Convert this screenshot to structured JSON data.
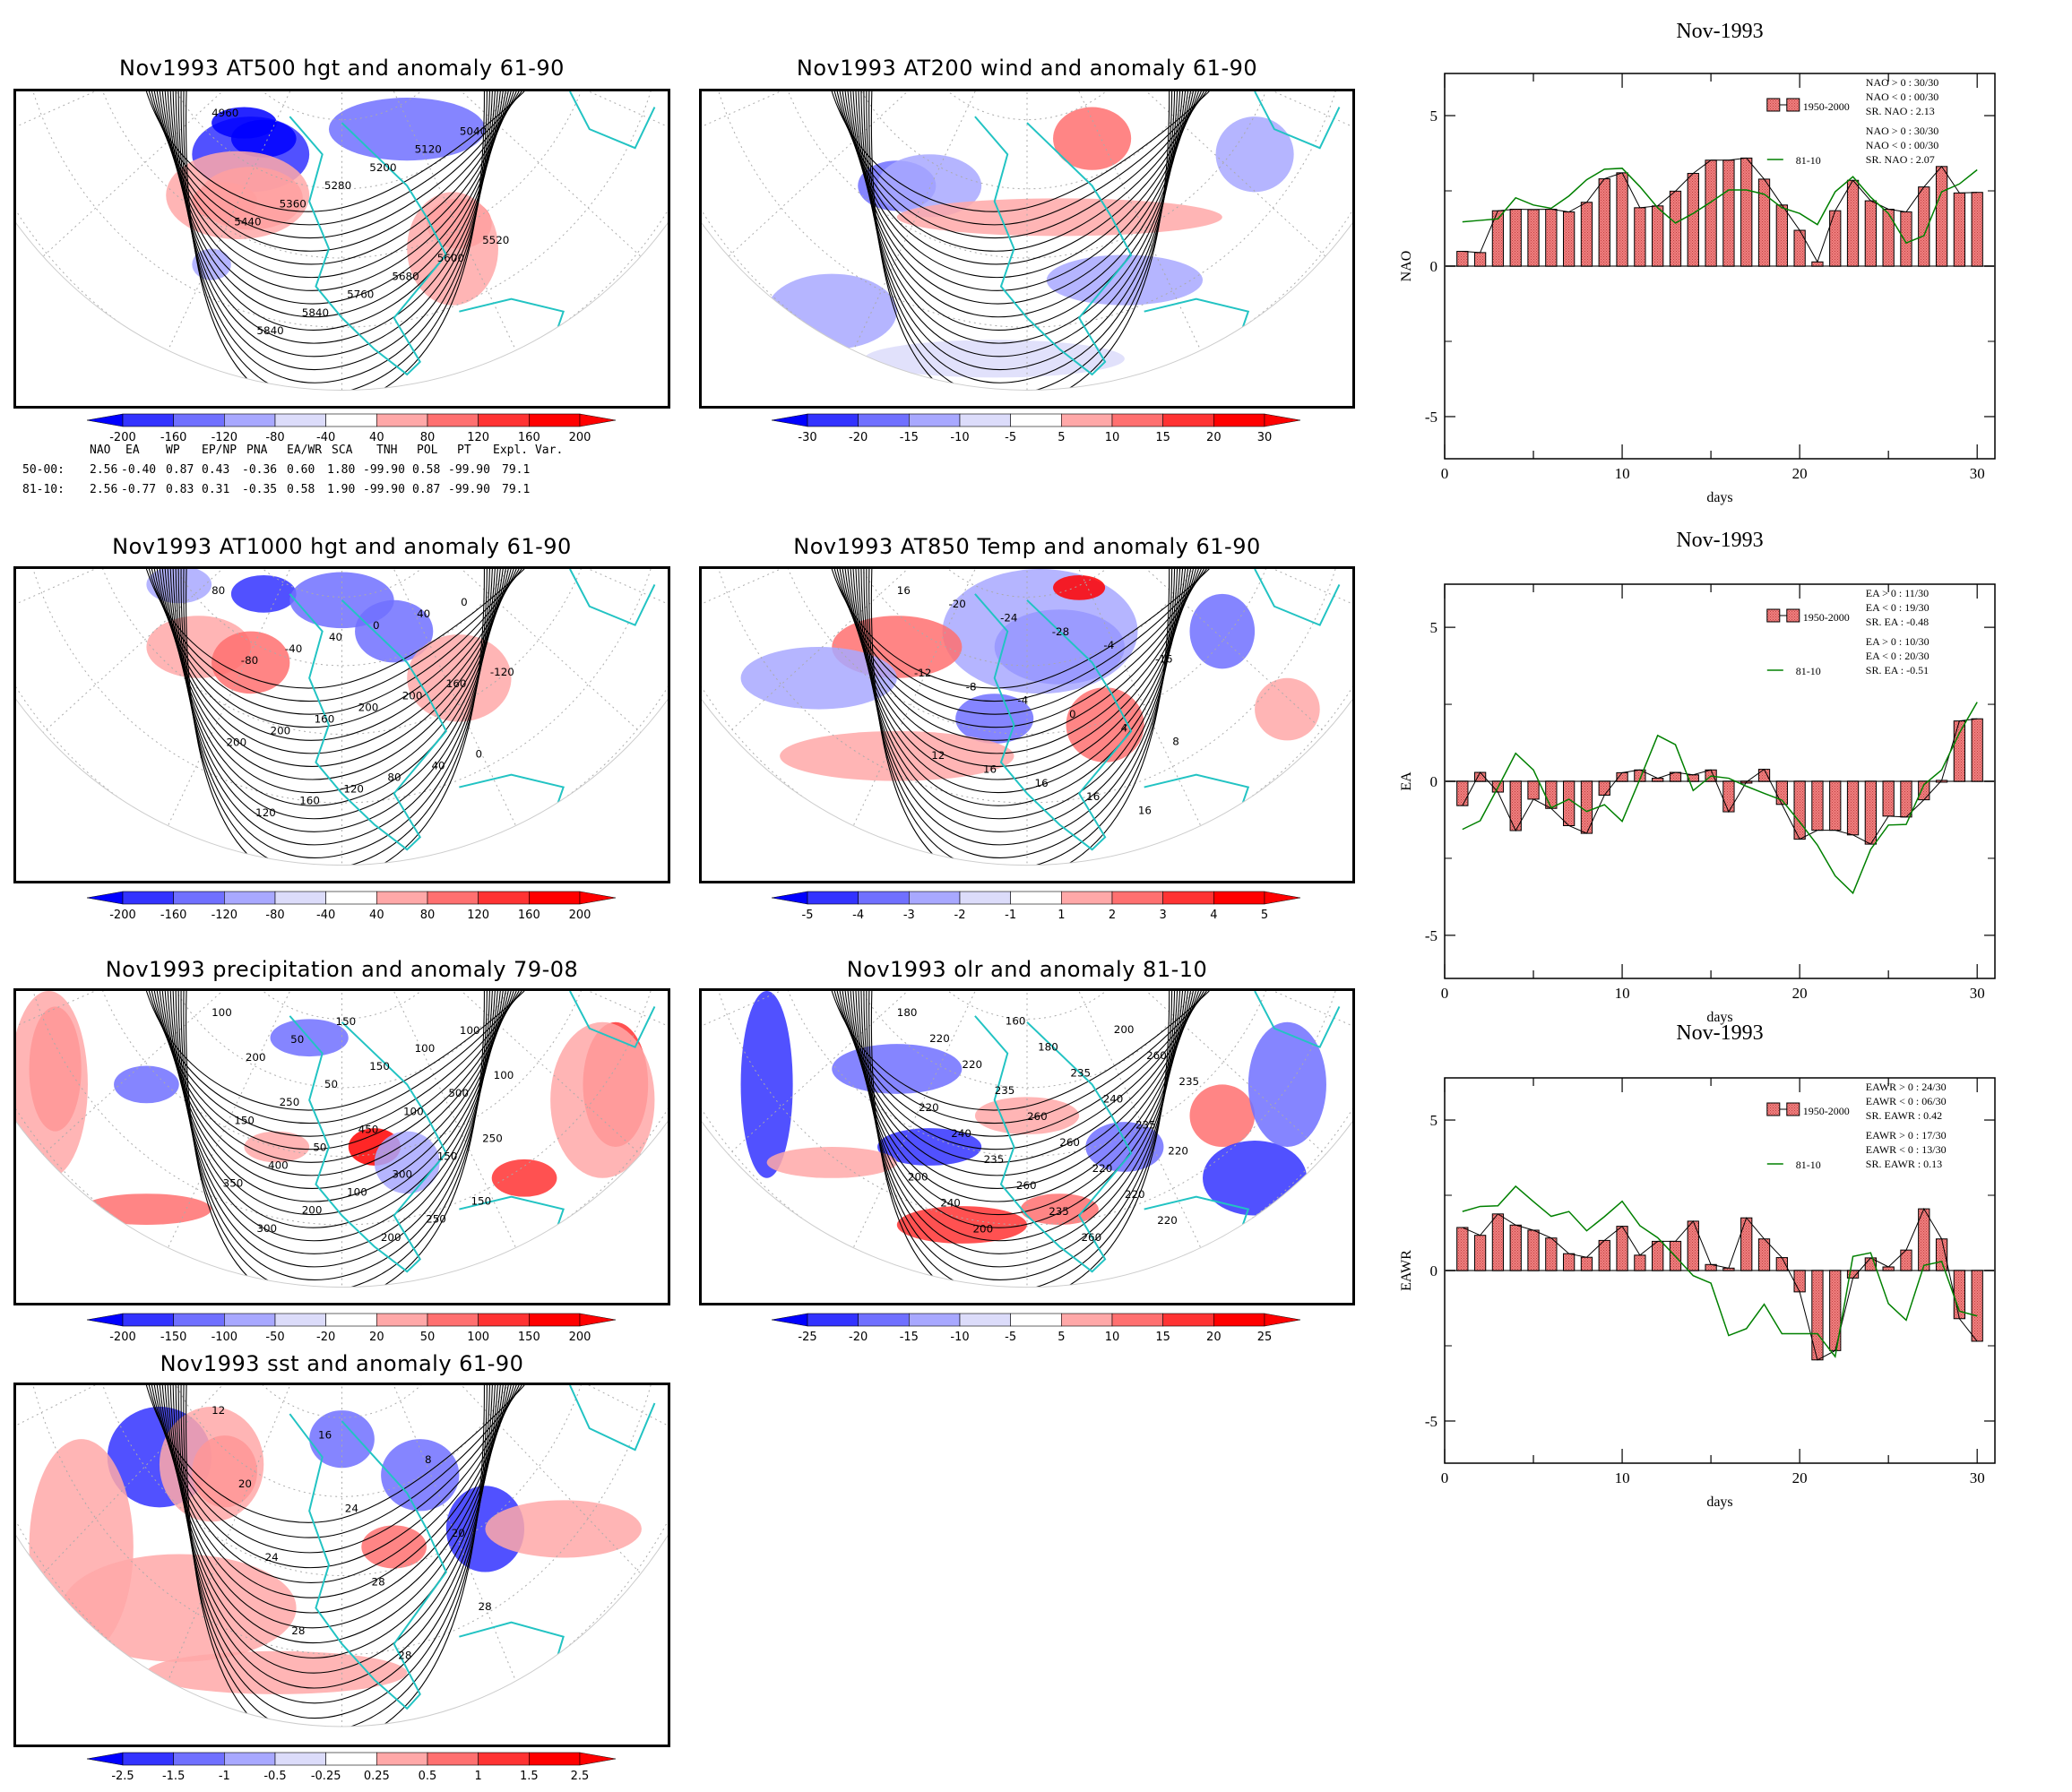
{
  "maps": [
    {
      "id": "at500",
      "title": "Nov1993 AT500 hgt and anomaly 61-90",
      "colorbar": {
        "labels": [
          "-200",
          "-160",
          "-120",
          "-80",
          "-40",
          "40",
          "80",
          "120",
          "160",
          "200"
        ]
      },
      "contour_labels": [
        "4960",
        "5040",
        "5120",
        "5200",
        "5280",
        "5360",
        "5440",
        "5520",
        "5600",
        "5680",
        "5760",
        "5840",
        "5840"
      ]
    },
    {
      "id": "at200",
      "title": "Nov1993 AT200 wind and anomaly 61-90",
      "colorbar": {
        "labels": [
          "-30",
          "-20",
          "-15",
          "-10",
          "-5",
          "5",
          "10",
          "15",
          "20",
          "30"
        ]
      },
      "contour_labels": []
    },
    {
      "id": "at1000",
      "title": "Nov1993 AT1000 hgt and anomaly 61-90",
      "colorbar": {
        "labels": [
          "-200",
          "-160",
          "-120",
          "-80",
          "-40",
          "40",
          "80",
          "120",
          "160",
          "200"
        ]
      },
      "contour_labels": [
        "80",
        "0",
        "40",
        "0",
        "40",
        "-40",
        "-80",
        "-120",
        "160",
        "200",
        "200",
        "160",
        "200",
        "200",
        "0",
        "40",
        "80",
        "120",
        "160",
        "120"
      ]
    },
    {
      "id": "at850",
      "title": "Nov1993 AT850 Temp and anomaly 61-90",
      "colorbar": {
        "labels": [
          "-5",
          "-4",
          "-3",
          "-2",
          "-1",
          "1",
          "2",
          "3",
          "4",
          "5"
        ]
      },
      "contour_labels": [
        "16",
        "-20",
        "-24",
        "-28",
        "-4",
        "-16",
        "-12",
        "-8",
        "-4",
        "0",
        "4",
        "8",
        "12",
        "16",
        "16",
        "16",
        "16"
      ]
    },
    {
      "id": "precip",
      "title": "Nov1993 precipitation and anomaly 79-08",
      "colorbar": {
        "labels": [
          "-200",
          "-150",
          "-100",
          "-50",
          "-20",
          "20",
          "50",
          "100",
          "150",
          "200"
        ]
      },
      "contour_labels": [
        "100",
        "150",
        "100",
        "50",
        "100",
        "200",
        "150",
        "100",
        "50",
        "500",
        "250",
        "100",
        "150",
        "450",
        "250",
        "50",
        "150",
        "400",
        "300",
        "350",
        "100",
        "150",
        "200",
        "250",
        "300",
        "200"
      ]
    },
    {
      "id": "olr",
      "title": "Nov1993 olr and anomaly 81-10",
      "colorbar": {
        "labels": [
          "-25",
          "-20",
          "-15",
          "-10",
          "-5",
          "5",
          "10",
          "15",
          "20",
          "25"
        ]
      },
      "contour_labels": [
        "180",
        "160",
        "200",
        "220",
        "180",
        "260",
        "220",
        "235",
        "235",
        "235",
        "240",
        "220",
        "260",
        "235",
        "240",
        "260",
        "220",
        "235",
        "220",
        "200",
        "260",
        "220",
        "240",
        "235",
        "220",
        "200",
        "260"
      ]
    },
    {
      "id": "sst",
      "title": "Nov1993 sst and anomaly 61-90",
      "colorbar": {
        "labels": [
          "-2.5",
          "-1.5",
          "-1",
          "-0.5",
          "-0.25",
          "0.25",
          "0.5",
          "1",
          "1.5",
          "2.5"
        ]
      },
      "contour_labels": [
        "12",
        "16",
        "8",
        "20",
        "24",
        "20",
        "24",
        "28",
        "28",
        "28",
        "28"
      ]
    }
  ],
  "colorbar_colors": [
    "#0000ff",
    "#3333ff",
    "#7070ff",
    "#a8a8ff",
    "#dcdcfa",
    "#ffffff",
    "#ffdcdc",
    "#ffa8a8",
    "#ff7070",
    "#ff3333",
    "#ff0000"
  ],
  "teleconnection_table": {
    "headers": [
      "NAO",
      "EA",
      "WP",
      "EP/NP",
      "PNA",
      "EA/WR",
      "SCA",
      "TNH",
      "POL",
      "PT",
      "Expl. Var."
    ],
    "rows": [
      {
        "label": "50-00:",
        "values": [
          "2.56",
          "-0.40",
          "0.87",
          "0.43",
          "-0.36",
          "0.60",
          "1.80",
          "-99.90",
          "0.58",
          "-99.90",
          "79.1"
        ]
      },
      {
        "label": "81-10:",
        "values": [
          "2.56",
          "-0.77",
          "0.83",
          "0.31",
          "-0.35",
          "0.58",
          "1.90",
          "-99.90",
          "0.87",
          "-99.90",
          "79.1"
        ]
      }
    ]
  },
  "chart_data": [
    {
      "type": "bar",
      "title": "Nov-1993",
      "xlabel": "days",
      "ylabel": "NAO",
      "xlim": [
        0,
        31
      ],
      "ylim": [
        -6.4,
        6.4
      ],
      "xticks": [
        0,
        10,
        20,
        30
      ],
      "yticks": [
        -5,
        0,
        5
      ],
      "x": [
        1,
        2,
        3,
        4,
        5,
        6,
        7,
        8,
        9,
        10,
        11,
        12,
        13,
        14,
        15,
        16,
        17,
        18,
        19,
        20,
        21,
        22,
        23,
        24,
        25,
        26,
        27,
        28,
        29,
        30
      ],
      "series": [
        {
          "name": "1950-2000",
          "kind": "bar",
          "color": "#f08080",
          "values": [
            0.49,
            0.45,
            1.84,
            1.89,
            1.88,
            1.89,
            1.8,
            2.12,
            2.9,
            3.1,
            1.94,
            2.0,
            2.49,
            3.08,
            3.52,
            3.52,
            3.59,
            2.89,
            2.03,
            1.19,
            0.14,
            1.84,
            2.85,
            2.17,
            1.89,
            1.8,
            2.63,
            3.31,
            2.43,
            2.45
          ]
        },
        {
          "name": "81-10",
          "kind": "line",
          "color": "#008000",
          "values": [
            1.47,
            1.52,
            1.57,
            2.27,
            2.03,
            1.92,
            2.33,
            2.87,
            3.22,
            3.25,
            2.64,
            1.94,
            1.43,
            1.75,
            2.13,
            2.53,
            2.53,
            2.39,
            1.94,
            1.75,
            1.38,
            2.47,
            2.97,
            2.29,
            1.75,
            0.77,
            1.01,
            2.47,
            2.73,
            3.2
          ]
        }
      ],
      "stats": {
        "1950-2000": [
          "NAO > 0 : 30/30",
          "NAO < 0 : 00/30",
          "SR. NAO :  2.13"
        ],
        "81-10": [
          "NAO > 0 : 30/30",
          "NAO < 0 : 00/30",
          "SR. NAO :  2.07"
        ]
      }
    },
    {
      "type": "bar",
      "title": "Nov-1993",
      "xlabel": "days",
      "ylabel": "EA",
      "xlim": [
        0,
        31
      ],
      "ylim": [
        -6.4,
        6.4
      ],
      "xticks": [
        0,
        10,
        20,
        30
      ],
      "yticks": [
        -5,
        0,
        5
      ],
      "x": [
        1,
        2,
        3,
        4,
        5,
        6,
        7,
        8,
        9,
        10,
        11,
        12,
        13,
        14,
        15,
        16,
        17,
        18,
        19,
        20,
        21,
        22,
        23,
        24,
        25,
        26,
        27,
        28,
        29,
        30
      ],
      "series": [
        {
          "name": "1950-2000",
          "kind": "bar",
          "color": "#f08080",
          "values": [
            -0.79,
            0.29,
            -0.35,
            -1.6,
            -0.58,
            -0.88,
            -1.44,
            -1.69,
            -0.45,
            0.28,
            0.37,
            0.1,
            0.29,
            0.21,
            0.37,
            -0.99,
            -0.02,
            0.39,
            -0.75,
            -1.88,
            -1.59,
            -1.59,
            -1.74,
            -2.04,
            -1.13,
            -1.16,
            -0.6,
            0.03,
            1.96,
            2.03
          ]
        },
        {
          "name": "81-10",
          "kind": "line",
          "color": "#008000",
          "values": [
            -1.56,
            -1.28,
            -0.2,
            0.91,
            0.37,
            -0.86,
            -0.58,
            -0.98,
            -0.76,
            -1.3,
            0.07,
            1.49,
            1.19,
            -0.3,
            0.17,
            0.1,
            -0.16,
            -0.39,
            -0.61,
            -1.32,
            -2.07,
            -3.07,
            -3.63,
            -2.21,
            -1.42,
            -1.4,
            -0.11,
            0.37,
            1.57,
            2.57
          ]
        }
      ],
      "stats": {
        "1950-2000": [
          "EA > 0 : 11/30",
          "EA < 0 : 19/30",
          "SR. EA : -0.48"
        ],
        "81-10": [
          "EA > 0 : 10/30",
          "EA < 0 : 20/30",
          "SR. EA : -0.51"
        ]
      }
    },
    {
      "type": "bar",
      "title": "Nov-1993",
      "xlabel": "days",
      "ylabel": "EAWR",
      "xlim": [
        0,
        31
      ],
      "ylim": [
        -6.4,
        6.4
      ],
      "xticks": [
        0,
        10,
        20,
        30
      ],
      "yticks": [
        -5,
        0,
        5
      ],
      "x": [
        1,
        2,
        3,
        4,
        5,
        6,
        7,
        8,
        9,
        10,
        11,
        12,
        13,
        14,
        15,
        16,
        17,
        18,
        19,
        20,
        21,
        22,
        23,
        24,
        25,
        26,
        27,
        28,
        29,
        30
      ],
      "series": [
        {
          "name": "1950-2000",
          "kind": "bar",
          "color": "#f08080",
          "values": [
            1.43,
            1.17,
            1.88,
            1.51,
            1.34,
            1.08,
            0.56,
            0.44,
            1.0,
            1.47,
            0.51,
            0.97,
            0.97,
            1.64,
            0.2,
            0.08,
            1.75,
            1.05,
            0.43,
            -0.71,
            -2.97,
            -2.66,
            -0.25,
            0.42,
            0.12,
            0.68,
            2.05,
            1.05,
            -1.6,
            -2.35
          ]
        },
        {
          "name": "81-10",
          "kind": "line",
          "color": "#008000",
          "values": [
            1.96,
            2.13,
            2.15,
            2.8,
            2.29,
            1.8,
            1.96,
            1.32,
            1.79,
            2.3,
            1.49,
            1.09,
            0.47,
            -0.17,
            -0.42,
            -2.16,
            -1.93,
            -1.12,
            -2.1,
            -2.1,
            -2.1,
            -2.86,
            0.47,
            0.59,
            -1.1,
            -1.65,
            0.17,
            0.3,
            -1.35,
            -1.51
          ]
        }
      ],
      "stats": {
        "1950-2000": [
          "EAWR > 0 : 24/30",
          "EAWR < 0 : 06/30",
          "SR. EAWR :  0.42"
        ],
        "81-10": [
          "EAWR > 0 : 17/30",
          "EAWR < 0 : 13/30",
          "SR. EAWR :  0.13"
        ]
      }
    }
  ]
}
